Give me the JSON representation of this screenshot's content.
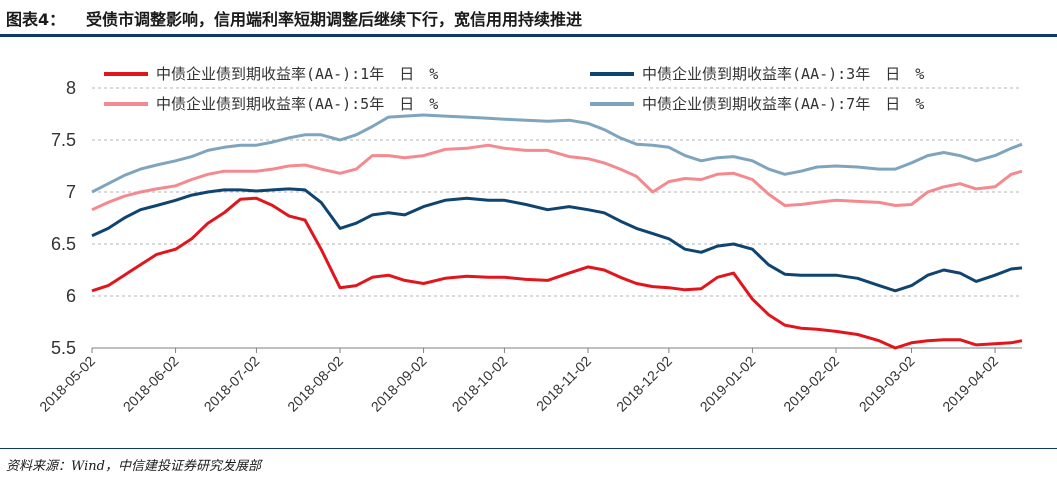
{
  "header": {
    "figure_label": "图表4：",
    "title": "受债市调整影响，信用端利率短期调整后继续下行，宽信用用持续推进"
  },
  "footer": {
    "source": "资料来源：Wind，中信建投证券研究发展部"
  },
  "colors": {
    "rule": "#0d3a66"
  },
  "chart_data": {
    "type": "line",
    "title": "",
    "xlabel": "",
    "ylabel": "",
    "ylim": [
      5.5,
      8
    ],
    "yticks": [
      "5.5",
      "6",
      "6.5",
      "7",
      "7.5",
      "8"
    ],
    "xlim": [
      "2018-05-02",
      "2019-04-12"
    ],
    "xticks": [
      "2018-05-02",
      "2018-06-02",
      "2018-07-02",
      "2018-08-02",
      "2018-09-02",
      "2018-10-02",
      "2018-11-02",
      "2018-12-02",
      "2019-01-02",
      "2019-02-02",
      "2019-03-02",
      "2019-04-02"
    ],
    "grid": "horizontal dashed",
    "legend": "top, two columns",
    "series": [
      {
        "name": "中债企业债到期收益率(AA-):1年　日　%",
        "color": "#e0161c",
        "points": [
          [
            "2018-05-02",
            6.05
          ],
          [
            "2018-05-08",
            6.1
          ],
          [
            "2018-05-14",
            6.2
          ],
          [
            "2018-05-20",
            6.3
          ],
          [
            "2018-05-26",
            6.4
          ],
          [
            "2018-06-02",
            6.45
          ],
          [
            "2018-06-08",
            6.55
          ],
          [
            "2018-06-14",
            6.7
          ],
          [
            "2018-06-20",
            6.8
          ],
          [
            "2018-06-26",
            6.93
          ],
          [
            "2018-07-02",
            6.94
          ],
          [
            "2018-07-08",
            6.87
          ],
          [
            "2018-07-14",
            6.77
          ],
          [
            "2018-07-20",
            6.73
          ],
          [
            "2018-07-26",
            6.45
          ],
          [
            "2018-08-02",
            6.08
          ],
          [
            "2018-08-08",
            6.1
          ],
          [
            "2018-08-14",
            6.18
          ],
          [
            "2018-08-20",
            6.2
          ],
          [
            "2018-08-26",
            6.15
          ],
          [
            "2018-09-02",
            6.12
          ],
          [
            "2018-09-10",
            6.17
          ],
          [
            "2018-09-18",
            6.19
          ],
          [
            "2018-09-26",
            6.18
          ],
          [
            "2018-10-02",
            6.18
          ],
          [
            "2018-10-10",
            6.16
          ],
          [
            "2018-10-18",
            6.15
          ],
          [
            "2018-10-26",
            6.22
          ],
          [
            "2018-11-02",
            6.28
          ],
          [
            "2018-11-08",
            6.25
          ],
          [
            "2018-11-14",
            6.18
          ],
          [
            "2018-11-20",
            6.12
          ],
          [
            "2018-11-26",
            6.09
          ],
          [
            "2018-12-02",
            6.08
          ],
          [
            "2018-12-08",
            6.06
          ],
          [
            "2018-12-14",
            6.07
          ],
          [
            "2018-12-20",
            6.18
          ],
          [
            "2018-12-26",
            6.22
          ],
          [
            "2019-01-02",
            5.97
          ],
          [
            "2019-01-08",
            5.82
          ],
          [
            "2019-01-14",
            5.72
          ],
          [
            "2019-01-20",
            5.69
          ],
          [
            "2019-01-26",
            5.68
          ],
          [
            "2019-02-02",
            5.66
          ],
          [
            "2019-02-10",
            5.63
          ],
          [
            "2019-02-18",
            5.57
          ],
          [
            "2019-02-24",
            5.5
          ],
          [
            "2019-03-02",
            5.55
          ],
          [
            "2019-03-08",
            5.57
          ],
          [
            "2019-03-14",
            5.58
          ],
          [
            "2019-03-20",
            5.58
          ],
          [
            "2019-03-26",
            5.53
          ],
          [
            "2019-04-02",
            5.54
          ],
          [
            "2019-04-08",
            5.55
          ],
          [
            "2019-04-12",
            5.57
          ]
        ]
      },
      {
        "name": "中债企业债到期收益率(AA-):3年　日　%",
        "color": "#0f4471",
        "points": [
          [
            "2018-05-02",
            6.58
          ],
          [
            "2018-05-08",
            6.65
          ],
          [
            "2018-05-14",
            6.75
          ],
          [
            "2018-05-20",
            6.83
          ],
          [
            "2018-05-26",
            6.87
          ],
          [
            "2018-06-02",
            6.92
          ],
          [
            "2018-06-08",
            6.97
          ],
          [
            "2018-06-14",
            7.0
          ],
          [
            "2018-06-20",
            7.02
          ],
          [
            "2018-06-26",
            7.02
          ],
          [
            "2018-07-02",
            7.01
          ],
          [
            "2018-07-08",
            7.02
          ],
          [
            "2018-07-14",
            7.03
          ],
          [
            "2018-07-20",
            7.02
          ],
          [
            "2018-07-26",
            6.9
          ],
          [
            "2018-08-02",
            6.65
          ],
          [
            "2018-08-08",
            6.7
          ],
          [
            "2018-08-14",
            6.78
          ],
          [
            "2018-08-20",
            6.8
          ],
          [
            "2018-08-26",
            6.78
          ],
          [
            "2018-09-02",
            6.86
          ],
          [
            "2018-09-10",
            6.92
          ],
          [
            "2018-09-18",
            6.94
          ],
          [
            "2018-09-26",
            6.92
          ],
          [
            "2018-10-02",
            6.92
          ],
          [
            "2018-10-10",
            6.88
          ],
          [
            "2018-10-18",
            6.83
          ],
          [
            "2018-10-26",
            6.86
          ],
          [
            "2018-11-02",
            6.83
          ],
          [
            "2018-11-08",
            6.8
          ],
          [
            "2018-11-14",
            6.72
          ],
          [
            "2018-11-20",
            6.65
          ],
          [
            "2018-11-26",
            6.6
          ],
          [
            "2018-12-02",
            6.55
          ],
          [
            "2018-12-08",
            6.45
          ],
          [
            "2018-12-14",
            6.42
          ],
          [
            "2018-12-20",
            6.48
          ],
          [
            "2018-12-26",
            6.5
          ],
          [
            "2019-01-02",
            6.45
          ],
          [
            "2019-01-08",
            6.3
          ],
          [
            "2019-01-14",
            6.21
          ],
          [
            "2019-01-20",
            6.2
          ],
          [
            "2019-01-26",
            6.2
          ],
          [
            "2019-02-02",
            6.2
          ],
          [
            "2019-02-10",
            6.17
          ],
          [
            "2019-02-18",
            6.1
          ],
          [
            "2019-02-24",
            6.05
          ],
          [
            "2019-03-02",
            6.1
          ],
          [
            "2019-03-08",
            6.2
          ],
          [
            "2019-03-14",
            6.25
          ],
          [
            "2019-03-20",
            6.22
          ],
          [
            "2019-03-26",
            6.14
          ],
          [
            "2019-04-02",
            6.2
          ],
          [
            "2019-04-08",
            6.26
          ],
          [
            "2019-04-12",
            6.27
          ]
        ]
      },
      {
        "name": "中债企业债到期收益率(AA-):5年　日　%",
        "color": "#f4898f",
        "points": [
          [
            "2018-05-02",
            6.83
          ],
          [
            "2018-05-08",
            6.9
          ],
          [
            "2018-05-14",
            6.96
          ],
          [
            "2018-05-20",
            7.0
          ],
          [
            "2018-05-26",
            7.03
          ],
          [
            "2018-06-02",
            7.06
          ],
          [
            "2018-06-08",
            7.12
          ],
          [
            "2018-06-14",
            7.17
          ],
          [
            "2018-06-20",
            7.2
          ],
          [
            "2018-06-26",
            7.2
          ],
          [
            "2018-07-02",
            7.2
          ],
          [
            "2018-07-08",
            7.22
          ],
          [
            "2018-07-14",
            7.25
          ],
          [
            "2018-07-20",
            7.26
          ],
          [
            "2018-07-26",
            7.22
          ],
          [
            "2018-08-02",
            7.18
          ],
          [
            "2018-08-08",
            7.22
          ],
          [
            "2018-08-14",
            7.35
          ],
          [
            "2018-08-20",
            7.35
          ],
          [
            "2018-08-26",
            7.33
          ],
          [
            "2018-09-02",
            7.35
          ],
          [
            "2018-09-10",
            7.41
          ],
          [
            "2018-09-18",
            7.42
          ],
          [
            "2018-09-26",
            7.45
          ],
          [
            "2018-10-02",
            7.42
          ],
          [
            "2018-10-10",
            7.4
          ],
          [
            "2018-10-18",
            7.4
          ],
          [
            "2018-10-26",
            7.34
          ],
          [
            "2018-11-02",
            7.32
          ],
          [
            "2018-11-08",
            7.28
          ],
          [
            "2018-11-14",
            7.22
          ],
          [
            "2018-11-20",
            7.15
          ],
          [
            "2018-11-26",
            7.0
          ],
          [
            "2018-12-02",
            7.1
          ],
          [
            "2018-12-08",
            7.13
          ],
          [
            "2018-12-14",
            7.12
          ],
          [
            "2018-12-20",
            7.17
          ],
          [
            "2018-12-26",
            7.18
          ],
          [
            "2019-01-02",
            7.12
          ],
          [
            "2019-01-08",
            6.98
          ],
          [
            "2019-01-14",
            6.87
          ],
          [
            "2019-01-20",
            6.88
          ],
          [
            "2019-01-26",
            6.9
          ],
          [
            "2019-02-02",
            6.92
          ],
          [
            "2019-02-10",
            6.91
          ],
          [
            "2019-02-18",
            6.9
          ],
          [
            "2019-02-24",
            6.87
          ],
          [
            "2019-03-02",
            6.88
          ],
          [
            "2019-03-08",
            7.0
          ],
          [
            "2019-03-14",
            7.05
          ],
          [
            "2019-03-20",
            7.08
          ],
          [
            "2019-03-26",
            7.03
          ],
          [
            "2019-04-02",
            7.05
          ],
          [
            "2019-04-08",
            7.17
          ],
          [
            "2019-04-12",
            7.2
          ]
        ]
      },
      {
        "name": "中债企业债到期收益率(AA-):7年　日　%",
        "color": "#7fa4be",
        "points": [
          [
            "2018-05-02",
            7.0
          ],
          [
            "2018-05-08",
            7.08
          ],
          [
            "2018-05-14",
            7.16
          ],
          [
            "2018-05-20",
            7.22
          ],
          [
            "2018-05-26",
            7.26
          ],
          [
            "2018-06-02",
            7.3
          ],
          [
            "2018-06-08",
            7.34
          ],
          [
            "2018-06-14",
            7.4
          ],
          [
            "2018-06-20",
            7.43
          ],
          [
            "2018-06-26",
            7.45
          ],
          [
            "2018-07-02",
            7.45
          ],
          [
            "2018-07-08",
            7.48
          ],
          [
            "2018-07-14",
            7.52
          ],
          [
            "2018-07-20",
            7.55
          ],
          [
            "2018-07-26",
            7.55
          ],
          [
            "2018-08-02",
            7.5
          ],
          [
            "2018-08-08",
            7.55
          ],
          [
            "2018-08-14",
            7.63
          ],
          [
            "2018-08-20",
            7.72
          ],
          [
            "2018-08-26",
            7.73
          ],
          [
            "2018-09-02",
            7.74
          ],
          [
            "2018-09-10",
            7.73
          ],
          [
            "2018-09-18",
            7.72
          ],
          [
            "2018-09-26",
            7.71
          ],
          [
            "2018-10-02",
            7.7
          ],
          [
            "2018-10-10",
            7.69
          ],
          [
            "2018-10-18",
            7.68
          ],
          [
            "2018-10-26",
            7.69
          ],
          [
            "2018-11-02",
            7.66
          ],
          [
            "2018-11-08",
            7.6
          ],
          [
            "2018-11-14",
            7.52
          ],
          [
            "2018-11-20",
            7.46
          ],
          [
            "2018-11-26",
            7.45
          ],
          [
            "2018-12-02",
            7.43
          ],
          [
            "2018-12-08",
            7.35
          ],
          [
            "2018-12-14",
            7.3
          ],
          [
            "2018-12-20",
            7.33
          ],
          [
            "2018-12-26",
            7.34
          ],
          [
            "2019-01-02",
            7.3
          ],
          [
            "2019-01-08",
            7.22
          ],
          [
            "2019-01-14",
            7.17
          ],
          [
            "2019-01-20",
            7.2
          ],
          [
            "2019-01-26",
            7.24
          ],
          [
            "2019-02-02",
            7.25
          ],
          [
            "2019-02-10",
            7.24
          ],
          [
            "2019-02-18",
            7.22
          ],
          [
            "2019-02-24",
            7.22
          ],
          [
            "2019-03-02",
            7.28
          ],
          [
            "2019-03-08",
            7.35
          ],
          [
            "2019-03-14",
            7.38
          ],
          [
            "2019-03-20",
            7.35
          ],
          [
            "2019-03-26",
            7.3
          ],
          [
            "2019-04-02",
            7.35
          ],
          [
            "2019-04-08",
            7.42
          ],
          [
            "2019-04-12",
            7.46
          ]
        ]
      }
    ]
  }
}
